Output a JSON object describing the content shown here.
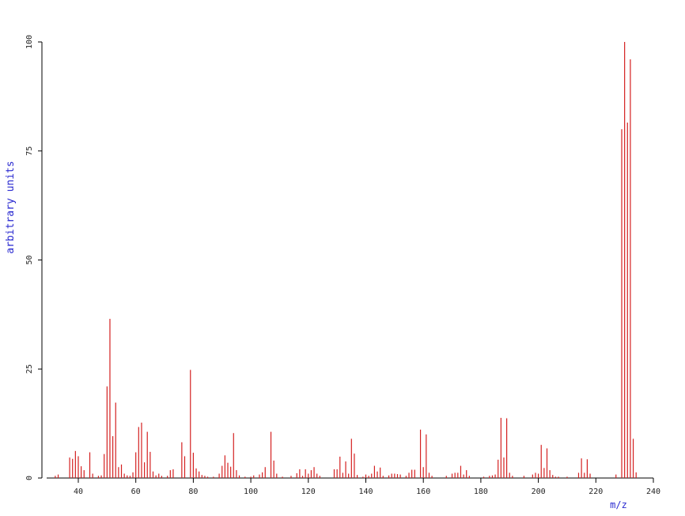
{
  "chart_data": {
    "type": "stem",
    "x_label": "m/z",
    "y_label": "arbitrary units",
    "color": "#d42020",
    "axis_label_color": "#2a2ad0",
    "xlim": [
      29,
      240
    ],
    "ylim": [
      0,
      100
    ],
    "xticks": [
      40,
      60,
      80,
      100,
      120,
      140,
      160,
      180,
      200,
      220,
      240
    ],
    "yticks": [
      0,
      25,
      50,
      75,
      100
    ],
    "x": [
      32,
      33,
      37,
      38,
      39,
      40,
      41,
      42,
      44,
      45,
      47,
      48,
      49,
      50,
      51,
      52,
      53,
      54,
      55,
      56,
      57,
      58,
      59,
      60,
      61,
      62,
      63,
      64,
      65,
      66,
      67,
      68,
      69,
      71,
      72,
      73,
      76,
      77,
      79,
      80,
      81,
      82,
      83,
      84,
      85,
      87,
      89,
      90,
      91,
      92,
      93,
      94,
      95,
      96,
      98,
      100,
      101,
      103,
      104,
      105,
      107,
      108,
      109,
      111,
      114,
      116,
      117,
      118,
      119,
      120,
      121,
      122,
      123,
      124,
      129,
      130,
      131,
      132,
      133,
      134,
      135,
      136,
      137,
      139,
      140,
      141,
      142,
      143,
      144,
      145,
      146,
      148,
      149,
      150,
      151,
      152,
      154,
      155,
      156,
      157,
      159,
      160,
      161,
      162,
      163,
      168,
      170,
      171,
      172,
      173,
      174,
      175,
      176,
      181,
      183,
      184,
      185,
      186,
      187,
      188,
      189,
      190,
      191,
      195,
      198,
      199,
      200,
      201,
      202,
      203,
      204,
      205,
      206,
      207,
      210,
      214,
      215,
      216,
      217,
      218,
      227,
      229,
      230,
      231,
      232,
      233,
      234
    ],
    "values": [
      0.5,
      0.8,
      4.7,
      4.4,
      6.2,
      5,
      2.7,
      1.8,
      5.9,
      1,
      0.5,
      0.6,
      5.5,
      21,
      36.5,
      9.6,
      17.3,
      2.5,
      3.1,
      1,
      0.6,
      0.5,
      1.3,
      5.9,
      11.7,
      12.7,
      3.6,
      10.6,
      6,
      1.5,
      0.6,
      1,
      0.5,
      0.5,
      1.8,
      2,
      8.2,
      5,
      24.8,
      5.8,
      2.2,
      1.5,
      0.7,
      0.5,
      0.3,
      0.3,
      1,
      2.8,
      5.2,
      3.5,
      2.6,
      10.3,
      1.8,
      0.6,
      0.3,
      0.3,
      0.6,
      0.8,
      1.3,
      2.5,
      10.6,
      4,
      1,
      0.3,
      0.5,
      1.1,
      2,
      0.5,
      2,
      1,
      1.8,
      2.5,
      1,
      0.5,
      2,
      2,
      4.9,
      1.2,
      3.8,
      1,
      9,
      5.6,
      0.7,
      0.3,
      0.8,
      0.5,
      1,
      2.8,
      1.5,
      2.4,
      0.5,
      0.6,
      1,
      1,
      0.9,
      0.8,
      0.5,
      1.2,
      1.9,
      1.9,
      11.1,
      2.5,
      10,
      1.2,
      0.5,
      0.5,
      1,
      1.2,
      1.2,
      2.8,
      0.8,
      1.8,
      0.5,
      0.3,
      0.5,
      0.6,
      0.8,
      4.2,
      13.8,
      4.7,
      13.7,
      1.2,
      0.5,
      0.5,
      0.8,
      1.2,
      1,
      7.6,
      2.3,
      6.8,
      1.8,
      0.7,
      0.3,
      0.3,
      0.3,
      1.2,
      4.5,
      1.2,
      4.3,
      1,
      0.8,
      80,
      100,
      81.5,
      96,
      9,
      1.3
    ]
  }
}
